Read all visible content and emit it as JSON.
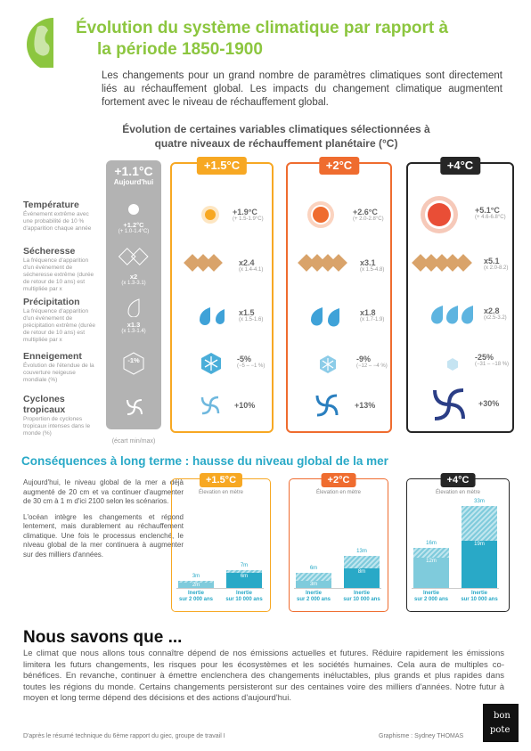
{
  "title": {
    "line1": "Évolution du système climatique par rapport à",
    "line2": "la période 1850-1900"
  },
  "intro": "Les changements pour un grand nombre de paramètres climatiques sont directement liés au réchauffement global. Les impacts du changement climatique augmentent fortement avec le niveau de réchauffement global.",
  "subtitle": {
    "line1": "Évolution de certaines variables climatiques sélectionnées à",
    "line2": "quatre niveaux de réchauffement planétaire (°C)"
  },
  "today": {
    "label": "+1.1°C",
    "sub": "Aujourd'hui"
  },
  "colors": {
    "green": "#8cc63f",
    "orange15": "#f7a823",
    "orange2": "#ef6c2f",
    "dark4": "#262626",
    "blue": "#29a9c7"
  },
  "rows": [
    {
      "name": "Température",
      "desc": "Événement extrême avec une probabilité de 10 % d'apparition chaque année",
      "icon": "sun-icon",
      "today": "+1.2°C",
      "today_range": "(+ 1.0-1.4°C)",
      "v15": "+1.9°C",
      "r15": "(+ 1.5-1.9°C)",
      "v2": "+2.6°C",
      "r2": "(+ 2.0-2.8°C)",
      "v4": "+5.1°C",
      "r4": "(+ 4.6-6.8°C)"
    },
    {
      "name": "Sécheresse",
      "desc": "La fréquence d'apparition d'un événement de sécheresse extrême (durée de retour de 10 ans) est multipliée par x",
      "icon": "drought-icon",
      "today": "x2",
      "today_range": "(x 1.3-3.1)",
      "v15": "x2.4",
      "r15": "(x 1.4-4.1)",
      "v2": "x3.1",
      "r2": "(x 1.5-4.8)",
      "v4": "x5.1",
      "r4": "(x 2.0-8.2)"
    },
    {
      "name": "Précipitation",
      "desc": "La fréquence d'apparition d'un événement de précipitation extrême (durée de retour de 10 ans) est multipliée par x",
      "icon": "raindrop-icon",
      "today": "x1.3",
      "today_range": "(x 1.3-1.4)",
      "v15": "x1.5",
      "r15": "(x 1.5-1.6)",
      "v2": "x1.8",
      "r2": "(x 1.7-1.9)",
      "v4": "x2.8",
      "r4": "(x2.5-3.2)"
    },
    {
      "name": "Enneigement",
      "desc": "Évolution de l'étendue de la couverture neigeuse mondiale (%)",
      "icon": "snowflake-icon",
      "today": "-1%",
      "today_range": "",
      "v15": "-5%",
      "r15": "(−5 – −1 %)",
      "v2": "-9%",
      "r2": "(−12 – −4 %)",
      "v4": "-25%",
      "r4": "(−31 – −18 %)"
    },
    {
      "name": "Cyclones tropicaux",
      "desc": "Proportion de cyclones tropicaux intenses dans le monde (%)",
      "icon": "cyclone-icon",
      "today": "",
      "today_range": "",
      "v15": "+10%",
      "r15": "",
      "v2": "+13%",
      "r2": "",
      "v4": "+30%",
      "r4": ""
    }
  ],
  "panels": {
    "p15": "+1.5°C",
    "p2": "+2°C",
    "p4": "+4°C"
  },
  "ecart": "(écart min/max)",
  "sea": {
    "title": "Conséquences à long terme : hausse du niveau global de la mer",
    "para1": "Aujourd'hui, le niveau global de la mer a déjà augmenté de 20 cm et va continuer d'augmenter de 30 cm à 1 m d'ici 2100 selon les scénarios.",
    "para2": "L'océan intègre les changements et répond lentement, mais durablement au réchauffement climatique. Une fois le processus enclenché, le niveau global de la mer continuera à augmenter sur des milliers d'années.",
    "subtitle": "Élevation en mètre",
    "inertia_label": "Inertie",
    "h2000": "sur 2 000 ans",
    "h10000": "sur 10 000 ans",
    "scenarios": [
      {
        "tag": "+1.5°C",
        "a_min": "2m",
        "a_max": "3m",
        "b_min": "6m",
        "b_max": "7m"
      },
      {
        "tag": "+2°C",
        "a_min": "3m",
        "a_max": "6m",
        "b_min": "8m",
        "b_max": "13m"
      },
      {
        "tag": "+4°C",
        "a_min": "12m",
        "a_max": "16m",
        "b_min": "19m",
        "b_max": "33m"
      }
    ]
  },
  "conclusion": {
    "title": "Nous savons que ...",
    "text": "Le climat que nous allons tous connaître dépend de nos émissions actuelles et futures. Réduire rapidement les émissions limitera les futurs changements, les risques pour les écosystèmes et les sociétés humaines. Cela aura de multiples co-bénéfices. En revanche, continuer à émettre enclenchera des changements inéluctables, plus grands et plus rapides dans toutes les régions du monde. Certains changements persisteront sur des centaines voire des milliers d'années. Notre futur à moyen et long terme dépend des décisions et des actions d'aujourd'hui."
  },
  "footer": {
    "source": "D'après le résumé technique du 6ème rapport du giec, groupe de travail I",
    "credit": "Graphisme : Sydney THOMAS",
    "logo": "bon pote"
  }
}
